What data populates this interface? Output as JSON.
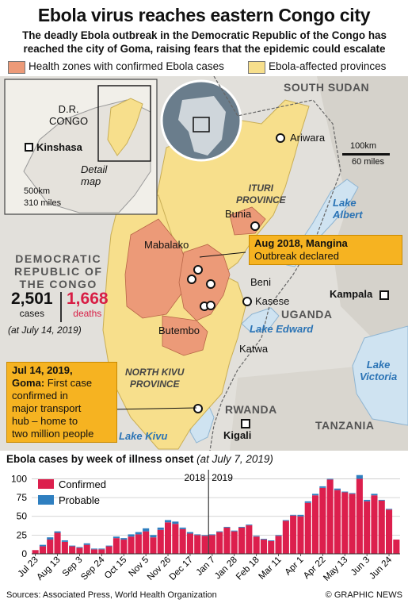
{
  "header": {
    "title": "Ebola virus reaches eastern Congo city",
    "subtitle_line1": "The deadly Ebola outbreak in the Democratic Republic of the Congo has",
    "subtitle_line2": "reached the city of Goma, raising fears that the epidemic could escalate"
  },
  "legend": {
    "health_zones": "Health zones with confirmed Ebola cases",
    "provinces": "Ebola-affected provinces"
  },
  "colors": {
    "health_zone": "#ec9a78",
    "province": "#f7df8c",
    "confirmed": "#dc1f4d",
    "probable": "#2f7fc0",
    "water": "#cfe3f1",
    "callout": "#f6b321",
    "deaths": "#d81e45"
  },
  "inset": {
    "country_line1": "D.R.",
    "country_line2": "CONGO",
    "capital": "Kinshasa",
    "detail_line1": "Detail",
    "detail_line2": "map",
    "scale_km": "500km",
    "scale_miles": "310 miles"
  },
  "map": {
    "south_sudan": "SOUTH SUDAN",
    "ariwara": "Ariwara",
    "scale_km": "100km",
    "scale_miles": "60 miles",
    "ituri_line1": "ITURI",
    "ituri_line2": "PROVINCE",
    "lake_albert_line1": "Lake",
    "lake_albert_line2": "Albert",
    "bunia": "Bunia",
    "mabalako": "Mabalako",
    "beni": "Beni",
    "kasese": "Kasese",
    "kampala": "Kampala",
    "uganda": "UGANDA",
    "lake_edward": "Lake Edward",
    "butembo": "Butembo",
    "katwa": "Katwa",
    "nk_line1": "NORTH KIVU",
    "nk_line2": "PROVINCE",
    "lake_victoria_line1": "Lake",
    "lake_victoria_line2": "Victoria",
    "rwanda": "RWANDA",
    "kigali": "Kigali",
    "tanzania": "TANZANIA",
    "lake_kivu": "Lake Kivu",
    "drc_line1": "DEMOCRATIC",
    "drc_line2": "REPUBLIC OF",
    "drc_line3": "THE CONGO"
  },
  "stats": {
    "cases_value": "2,501",
    "cases_label": "cases",
    "deaths_value": "1,668",
    "deaths_label": "deaths",
    "date_note": "(at July 14, 2019)"
  },
  "callouts": {
    "mangina_title": "Aug 2018, Mangina",
    "mangina_text": "Outbreak declared",
    "goma_line1_bold": "Jul 14, 2019,",
    "goma_line2_bold": "Goma:",
    "goma_line2_rest": "First case",
    "goma_line3": "confirmed in",
    "goma_line4": "major transport",
    "goma_line5": "hub – home to",
    "goma_line6": "two million people"
  },
  "chart_data": {
    "type": "bar",
    "title": "Ebola cases by week of illness onset",
    "title_note": "(at July 7, 2019)",
    "stacked": true,
    "ylim": [
      0,
      110
    ],
    "yticks": [
      0,
      25,
      50,
      75,
      100
    ],
    "year_markers": [
      "2018",
      "2019"
    ],
    "tick_labels": [
      "Jul 23",
      "Aug 13",
      "Sep 3",
      "Sep 24",
      "Oct 15",
      "Nov 5",
      "Nov 26",
      "Dec 17",
      "Jan 7",
      "Jan 28",
      "Feb 18",
      "Mar 11",
      "Apr 1",
      "Apr 22",
      "May 13",
      "Jun 3",
      "Jun 24"
    ],
    "categories": [
      "Jul 23",
      "Jul 30",
      "Aug 6",
      "Aug 13",
      "Aug 20",
      "Aug 27",
      "Sep 3",
      "Sep 10",
      "Sep 17",
      "Sep 24",
      "Oct 1",
      "Oct 8",
      "Oct 15",
      "Oct 22",
      "Oct 29",
      "Nov 5",
      "Nov 12",
      "Nov 19",
      "Nov 26",
      "Dec 3",
      "Dec 10",
      "Dec 17",
      "Dec 24",
      "Dec 31",
      "Jan 7",
      "Jan 14",
      "Jan 21",
      "Jan 28",
      "Feb 4",
      "Feb 11",
      "Feb 18",
      "Feb 25",
      "Mar 4",
      "Mar 11",
      "Mar 18",
      "Mar 25",
      "Apr 1",
      "Apr 8",
      "Apr 15",
      "Apr 22",
      "Apr 29",
      "May 6",
      "May 13",
      "May 20",
      "May 27",
      "Jun 3",
      "Jun 10",
      "Jun 17",
      "Jun 24",
      "Jul 1"
    ],
    "series": [
      {
        "name": "Confirmed",
        "values": [
          5,
          10,
          19,
          28,
          16,
          10,
          8,
          12,
          6,
          6,
          10,
          21,
          19,
          23,
          26,
          30,
          22,
          32,
          42,
          40,
          33,
          27,
          25,
          24,
          25,
          29,
          35,
          30,
          35,
          38,
          23,
          19,
          17,
          24,
          44,
          51,
          50,
          68,
          78,
          88,
          99,
          85,
          82,
          80,
          100,
          70,
          78,
          71,
          59,
          19
        ]
      },
      {
        "name": "Probable",
        "values": [
          0,
          2,
          3,
          2,
          2,
          1,
          1,
          2,
          1,
          1,
          1,
          2,
          2,
          3,
          3,
          4,
          3,
          3,
          3,
          3,
          2,
          2,
          1,
          1,
          1,
          1,
          1,
          1,
          1,
          1,
          1,
          1,
          1,
          1,
          1,
          1,
          2,
          2,
          2,
          2,
          1,
          2,
          1,
          1,
          5,
          2,
          2,
          1,
          1,
          0
        ]
      }
    ],
    "legend_entries": [
      "Confirmed",
      "Probable"
    ]
  },
  "footer": {
    "sources": "Sources: Associated Press, World Health Organization",
    "credit": "© GRAPHIC NEWS"
  }
}
